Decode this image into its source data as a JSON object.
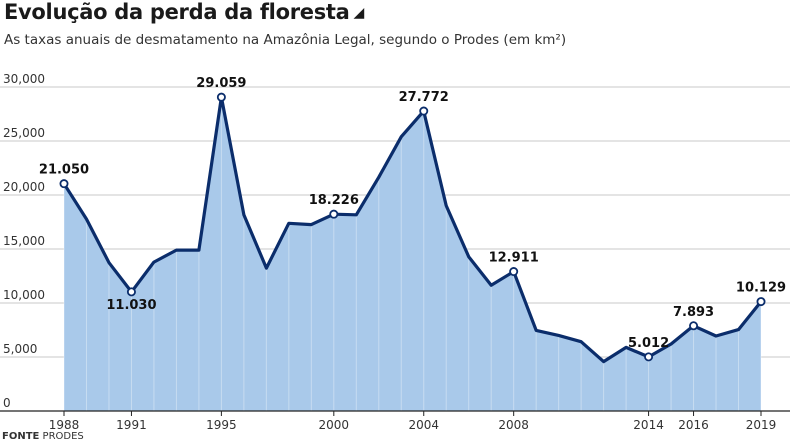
{
  "header": {
    "title": "Evolução da perda da floresta",
    "title_marker": "◢",
    "subtitle": "As taxas anuais de desmatamento na Amazônia Legal, segundo o Prodes (em km²)"
  },
  "source": {
    "label": "FONTE",
    "text": "PRODES"
  },
  "colors": {
    "line": "#0b2d6b",
    "fill": "#a9c9ea",
    "grid": "#c9c9c9",
    "axis": "#222222"
  },
  "chart_data": {
    "type": "area",
    "title": "Evolução da perda da floresta",
    "ylabel": "",
    "xlabel": "",
    "ylim": [
      0,
      30000
    ],
    "xlim": [
      1988,
      2019
    ],
    "y_ticks": [
      "0",
      "5,000",
      "10,000",
      "15,000",
      "20,000",
      "25,000",
      "30,000"
    ],
    "y_tick_values": [
      0,
      5000,
      10000,
      15000,
      20000,
      25000,
      30000
    ],
    "x_ticks": [
      "1988",
      "1991",
      "1995",
      "2000",
      "2004",
      "2008",
      "2014",
      "2016",
      "2019"
    ],
    "x_tick_values": [
      1988,
      1991,
      1995,
      2000,
      2004,
      2008,
      2014,
      2016,
      2019
    ],
    "grid": true,
    "x": [
      1988,
      1989,
      1990,
      1991,
      1992,
      1993,
      1994,
      1995,
      1996,
      1997,
      1998,
      1999,
      2000,
      2001,
      2002,
      2003,
      2004,
      2005,
      2006,
      2007,
      2008,
      2009,
      2010,
      2011,
      2012,
      2013,
      2014,
      2015,
      2016,
      2017,
      2018,
      2019
    ],
    "values": [
      21050,
      17770,
      13730,
      11030,
      13786,
      14896,
      14896,
      29059,
      18161,
      13227,
      17383,
      17259,
      18226,
      18165,
      21651,
      25396,
      27772,
      19014,
      14286,
      11651,
      12911,
      7464,
      7000,
      6418,
      4571,
      5891,
      5012,
      6207,
      7893,
      6947,
      7536,
      10129
    ],
    "annotations": [
      {
        "x": 1988,
        "label": "21.050",
        "pos": "above"
      },
      {
        "x": 1991,
        "label": "11.030",
        "pos": "below"
      },
      {
        "x": 1995,
        "label": "29.059",
        "pos": "above"
      },
      {
        "x": 2000,
        "label": "18.226",
        "pos": "above"
      },
      {
        "x": 2004,
        "label": "27.772",
        "pos": "above"
      },
      {
        "x": 2008,
        "label": "12.911",
        "pos": "above"
      },
      {
        "x": 2014,
        "label": "5.012",
        "pos": "above"
      },
      {
        "x": 2016,
        "label": "7.893",
        "pos": "above"
      },
      {
        "x": 2019,
        "label": "10.129",
        "pos": "above"
      }
    ]
  }
}
